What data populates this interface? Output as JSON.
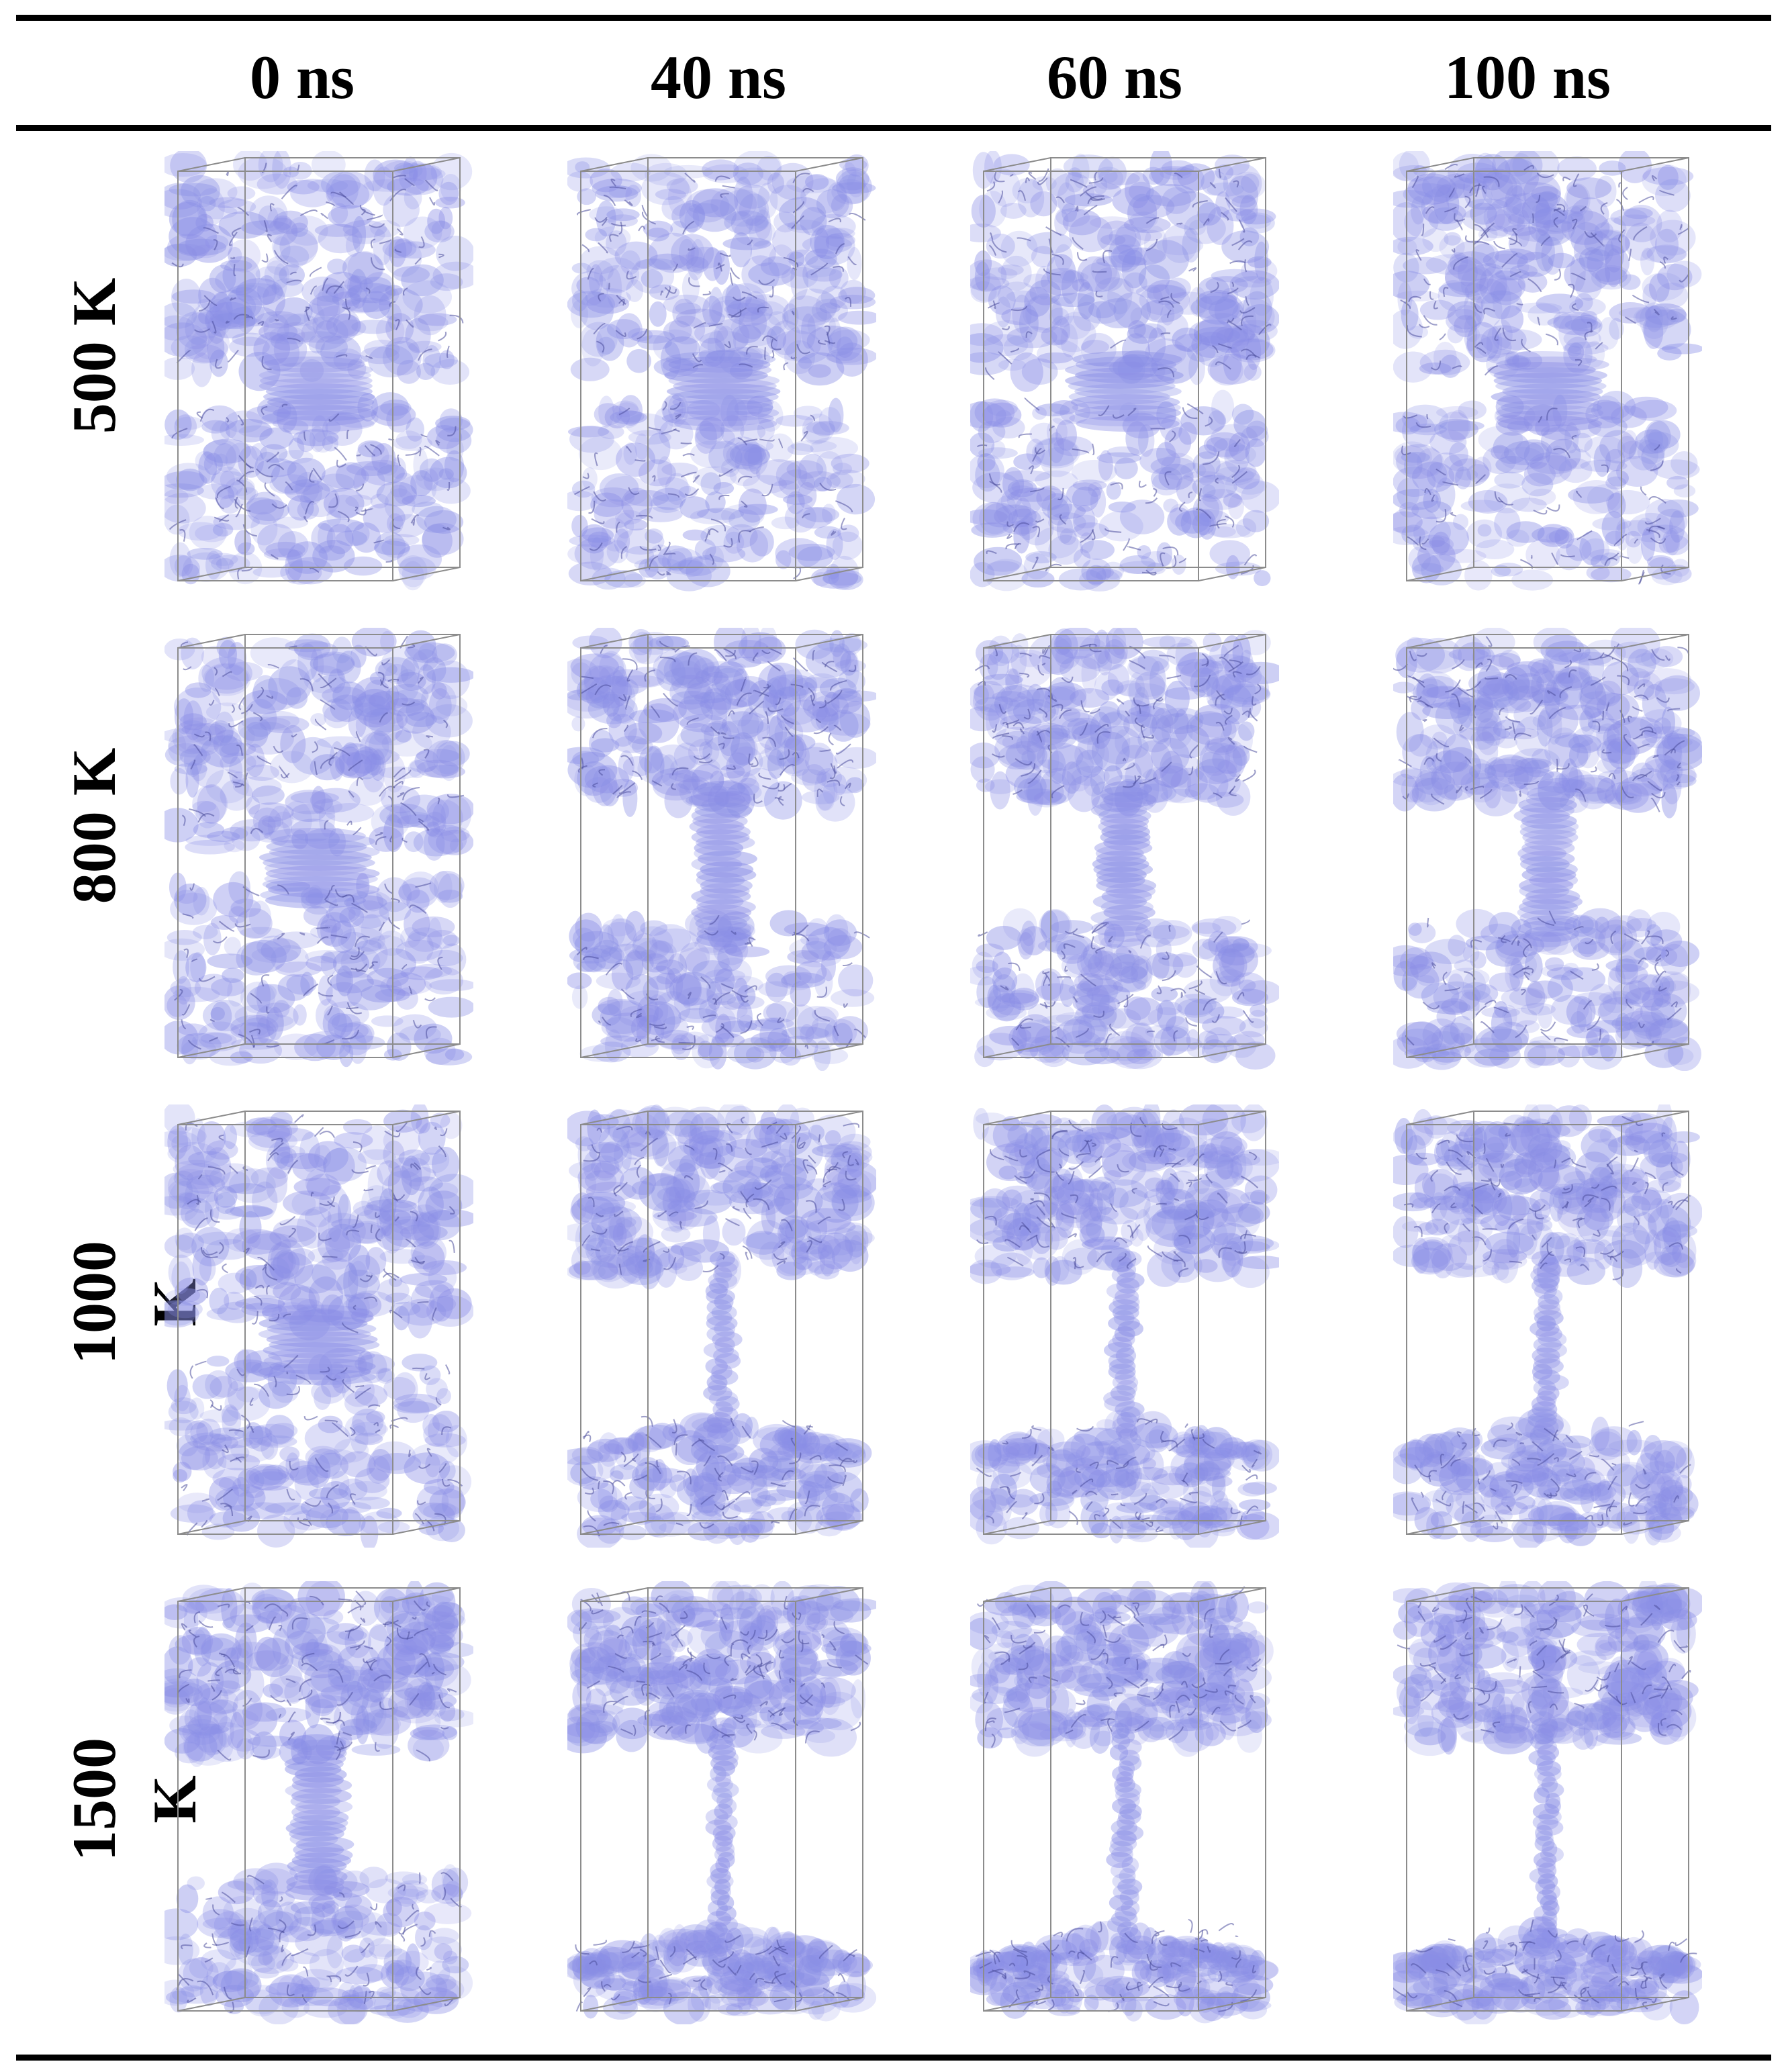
{
  "columns": [
    "0 ns",
    "40 ns",
    "60 ns",
    "100 ns"
  ],
  "rows": [
    "500 K",
    "800 K",
    "1000 K",
    "1500 K"
  ],
  "colors": {
    "surface": "#8a8ee6",
    "surface_dark": "#4d4f9c",
    "box_edge": "#8c8c8c",
    "rule": "#000000"
  },
  "panels": [
    [
      {
        "neck_stage": 0
      },
      {
        "neck_stage": 0
      },
      {
        "neck_stage": 0
      },
      {
        "neck_stage": 0
      }
    ],
    [
      {
        "neck_stage": 0
      },
      {
        "neck_stage": 1
      },
      {
        "neck_stage": 1
      },
      {
        "neck_stage": 1
      }
    ],
    [
      {
        "neck_stage": 0
      },
      {
        "neck_stage": 2
      },
      {
        "neck_stage": 2
      },
      {
        "neck_stage": 2
      }
    ],
    [
      {
        "neck_stage": 1
      },
      {
        "neck_stage": 3
      },
      {
        "neck_stage": 3
      },
      {
        "neck_stage": 3
      }
    ]
  ]
}
